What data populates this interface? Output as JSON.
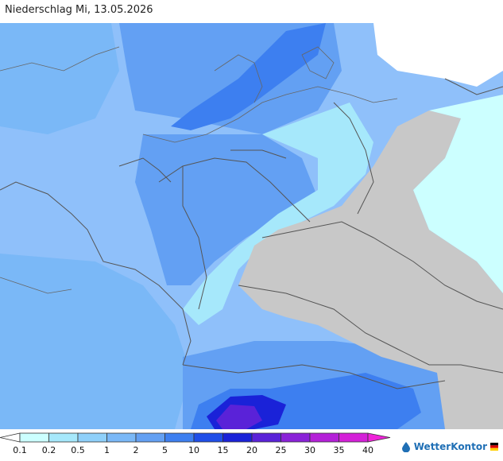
{
  "header": {
    "title": "Niederschlag Mi, 13.05.2026"
  },
  "legend": {
    "labels": [
      "0.1",
      "0.2",
      "0.5",
      "1",
      "2",
      "5",
      "10",
      "15",
      "20",
      "25",
      "30",
      "35",
      "40"
    ],
    "colors": [
      "#ccffff",
      "#a6e8fb",
      "#8fd0fa",
      "#7ab8f7",
      "#63a0f3",
      "#3d7ff0",
      "#1f4ee8",
      "#1a22d8",
      "#5a22d8",
      "#8a22d8",
      "#b420d8",
      "#d420d8",
      "#ee22d8"
    ]
  },
  "brand": {
    "name": "WetterKontor"
  },
  "colors": {
    "no_data": "#c8c8c8",
    "border": "#555555",
    "water_light": "#a8d4fa"
  }
}
